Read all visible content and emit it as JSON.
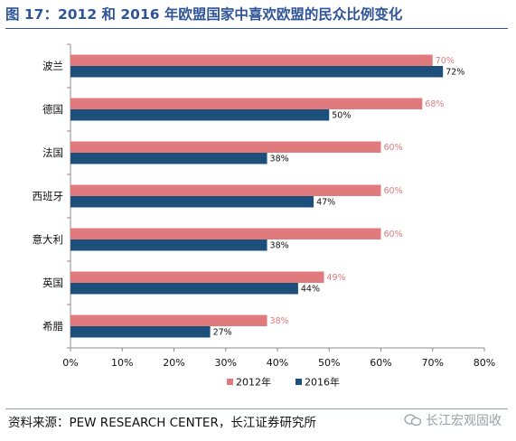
{
  "title": "图 17：2012 和 2016 年欧盟国家中喜欢欧盟的民众比例变化",
  "source": "资料来源：PEW RESEARCH CENTER，长江证券研究所",
  "watermark": "长江宏观固收",
  "colors": {
    "s2012": "#e07a7c",
    "s2016": "#1c4f7c",
    "title": "#2f5597"
  },
  "chart_data": {
    "type": "bar",
    "orientation": "horizontal",
    "categories": [
      "波兰",
      "德国",
      "法国",
      "西班牙",
      "意大利",
      "英国",
      "希腊"
    ],
    "series": [
      {
        "name": "2012年",
        "values": [
          70,
          68,
          60,
          60,
          60,
          49,
          38
        ],
        "labels": [
          "70%",
          "68%",
          "60%",
          "60%",
          "60%",
          "49%",
          "38%"
        ]
      },
      {
        "name": "2016年",
        "values": [
          72,
          50,
          38,
          47,
          38,
          44,
          27
        ],
        "labels": [
          "72%",
          "50%",
          "38%",
          "47%",
          "38%",
          "44%",
          "27%"
        ]
      }
    ],
    "xlim": [
      0,
      80
    ],
    "xticks": [
      "0%",
      "10%",
      "20%",
      "30%",
      "40%",
      "50%",
      "60%",
      "70%",
      "80%"
    ],
    "legend_position": "bottom",
    "grid": false
  }
}
